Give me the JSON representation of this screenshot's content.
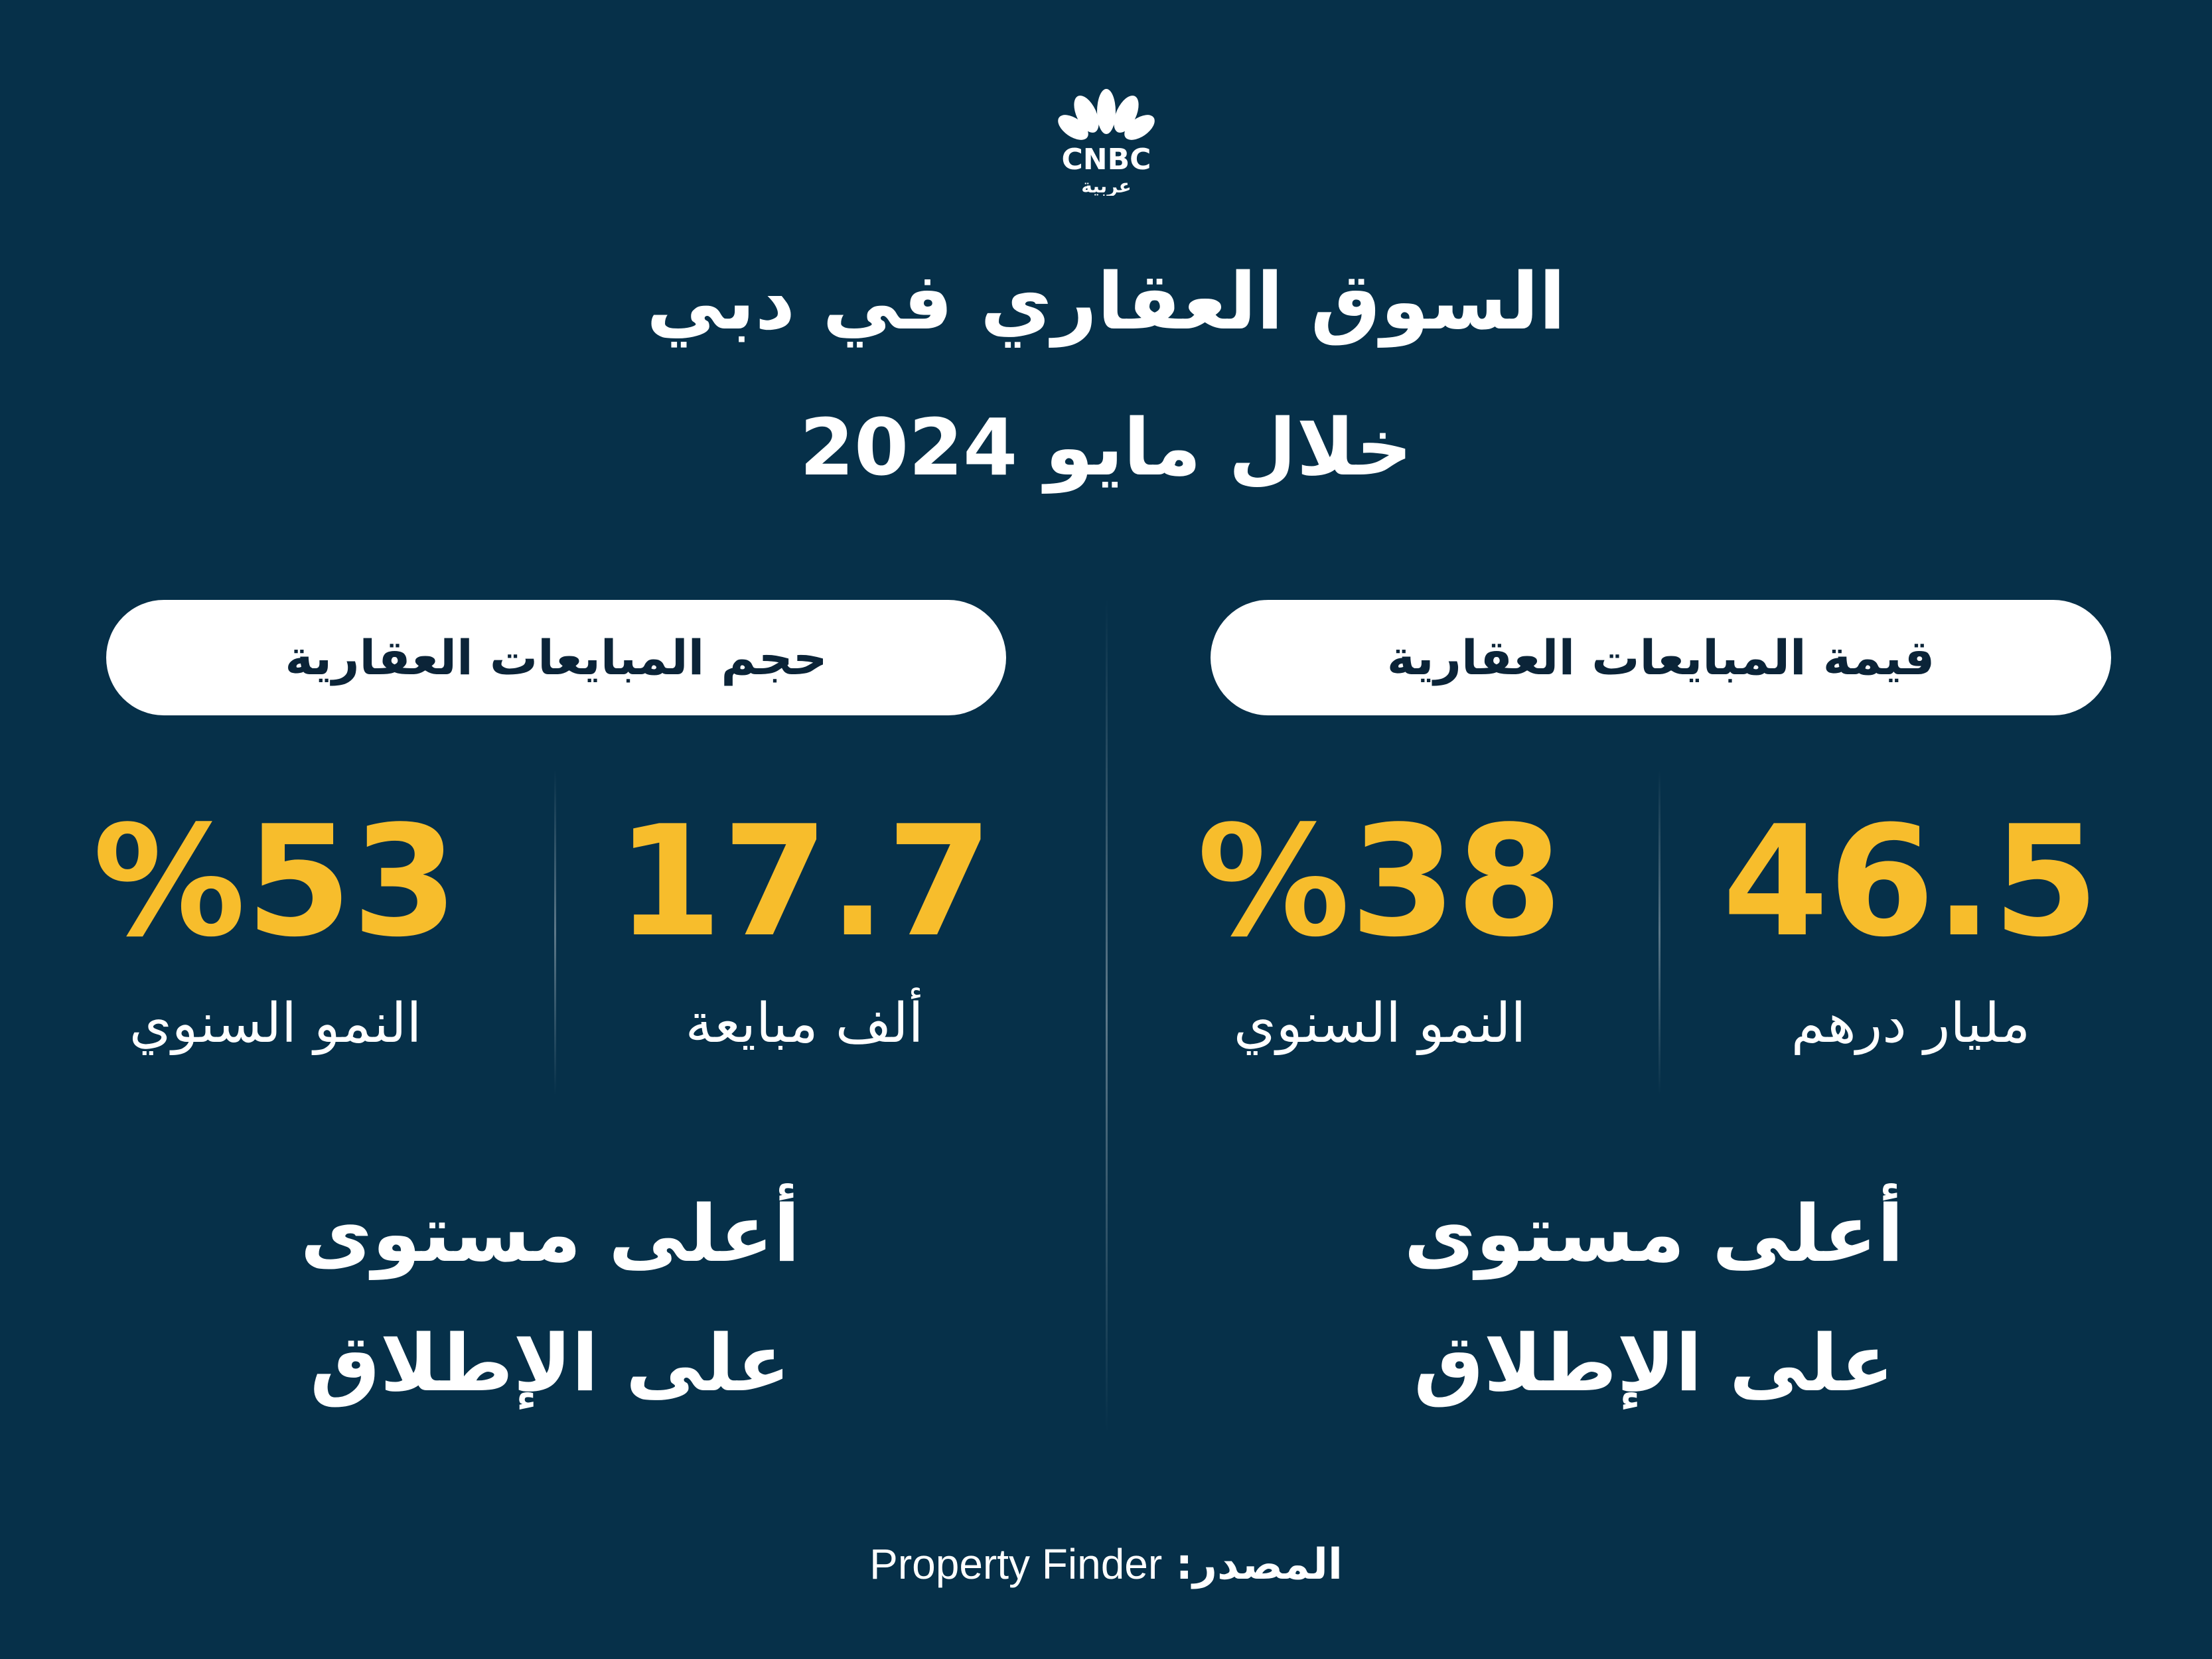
{
  "brand": {
    "logo_text": "CNBC",
    "logo_subtext": "عربية"
  },
  "title": {
    "line1": "السوق العقاري في دبي",
    "line2": "خلال مايو 2024"
  },
  "colors": {
    "background": "#063049",
    "accent": "#f7bd2c",
    "pill": "#ffffff"
  },
  "sections": {
    "value": {
      "heading": "قيمة المبايعات العقارية",
      "main_value": "46.5",
      "main_label": "مليار درهم",
      "growth_value": "%38",
      "growth_label": "النمو السنوي",
      "note_line1": "أعلى مستوى",
      "note_line2": "على الإطلاق"
    },
    "volume": {
      "heading": "حجم المبايعات العقارية",
      "main_value": "17.7",
      "main_label": "ألف مبايعة",
      "growth_value": "%53",
      "growth_label": "النمو السنوي",
      "note_line1": "أعلى مستوى",
      "note_line2": "على الإطلاق"
    }
  },
  "source": {
    "label": "المصدر:",
    "value": "Property Finder"
  }
}
